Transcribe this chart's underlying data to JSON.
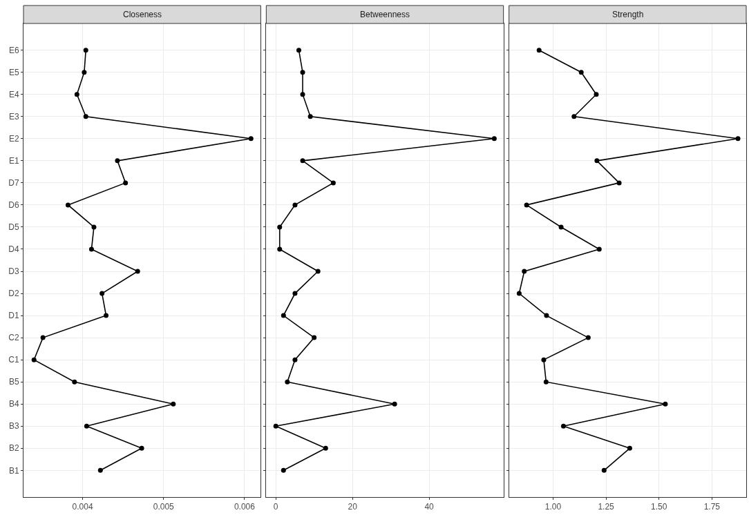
{
  "chart_data": [
    {
      "type": "line",
      "title": "Closeness",
      "orientation": "horizontal",
      "categories": [
        "E6",
        "E5",
        "E4",
        "E3",
        "E2",
        "E1",
        "D7",
        "D6",
        "D5",
        "D4",
        "D3",
        "D2",
        "D1",
        "C2",
        "C1",
        "B5",
        "B4",
        "B3",
        "B2",
        "B1"
      ],
      "series": [
        {
          "color": "#000000",
          "values": [
            0.00404,
            0.00402,
            0.00393,
            0.00404,
            0.00608,
            0.00443,
            0.00453,
            0.00382,
            0.00414,
            0.00411,
            0.00468,
            0.00424,
            0.00429,
            0.00351,
            0.0034,
            0.0039,
            0.00512,
            0.00405,
            0.00473,
            0.00422
          ]
        }
      ],
      "xlim": [
        0.00327,
        0.0062
      ],
      "xticks": [
        0.004,
        0.005,
        0.006
      ],
      "grid": true,
      "marker": "circle",
      "line_style": "solid"
    },
    {
      "type": "line",
      "title": "Betweenness",
      "orientation": "horizontal",
      "categories": [
        "E6",
        "E5",
        "E4",
        "E3",
        "E2",
        "E1",
        "D7",
        "D6",
        "D5",
        "D4",
        "D3",
        "D2",
        "D1",
        "C2",
        "C1",
        "B5",
        "B4",
        "B3",
        "B2",
        "B1"
      ],
      "series": [
        {
          "color": "#000000",
          "values": [
            6,
            7,
            7,
            9,
            57,
            7,
            15,
            5,
            1,
            1,
            11,
            5,
            2,
            10,
            5,
            3,
            31,
            0,
            13,
            2
          ]
        }
      ],
      "xlim": [
        -2.5,
        59.4
      ],
      "xticks": [
        0,
        20,
        40
      ],
      "grid": true,
      "marker": "circle",
      "line_style": "solid",
      "tick_labels": "x"
    },
    {
      "type": "line",
      "title": "Strength",
      "orientation": "horizontal",
      "categories": [
        "E6",
        "E5",
        "E4",
        "E3",
        "E2",
        "E1",
        "D7",
        "D6",
        "D5",
        "D4",
        "D3",
        "D2",
        "D1",
        "C2",
        "C1",
        "B5",
        "B4",
        "B3",
        "B2",
        "B1"
      ],
      "series": [
        {
          "color": "#000000",
          "values": [
            0.934,
            1.133,
            1.204,
            1.099,
            1.873,
            1.207,
            1.312,
            0.875,
            1.038,
            1.218,
            0.864,
            0.84,
            0.969,
            1.166,
            0.956,
            0.967,
            1.53,
            1.049,
            1.362,
            1.241
          ]
        }
      ],
      "xlim": [
        0.792,
        1.912
      ],
      "xticks": [
        {
          "value": 1.0,
          "label": "1.00"
        },
        1.25,
        {
          "value": 1.5,
          "label": "1.50"
        },
        1.75
      ],
      "grid": true,
      "marker": "circle",
      "line_style": "solid",
      "tick_labels": "x"
    }
  ]
}
